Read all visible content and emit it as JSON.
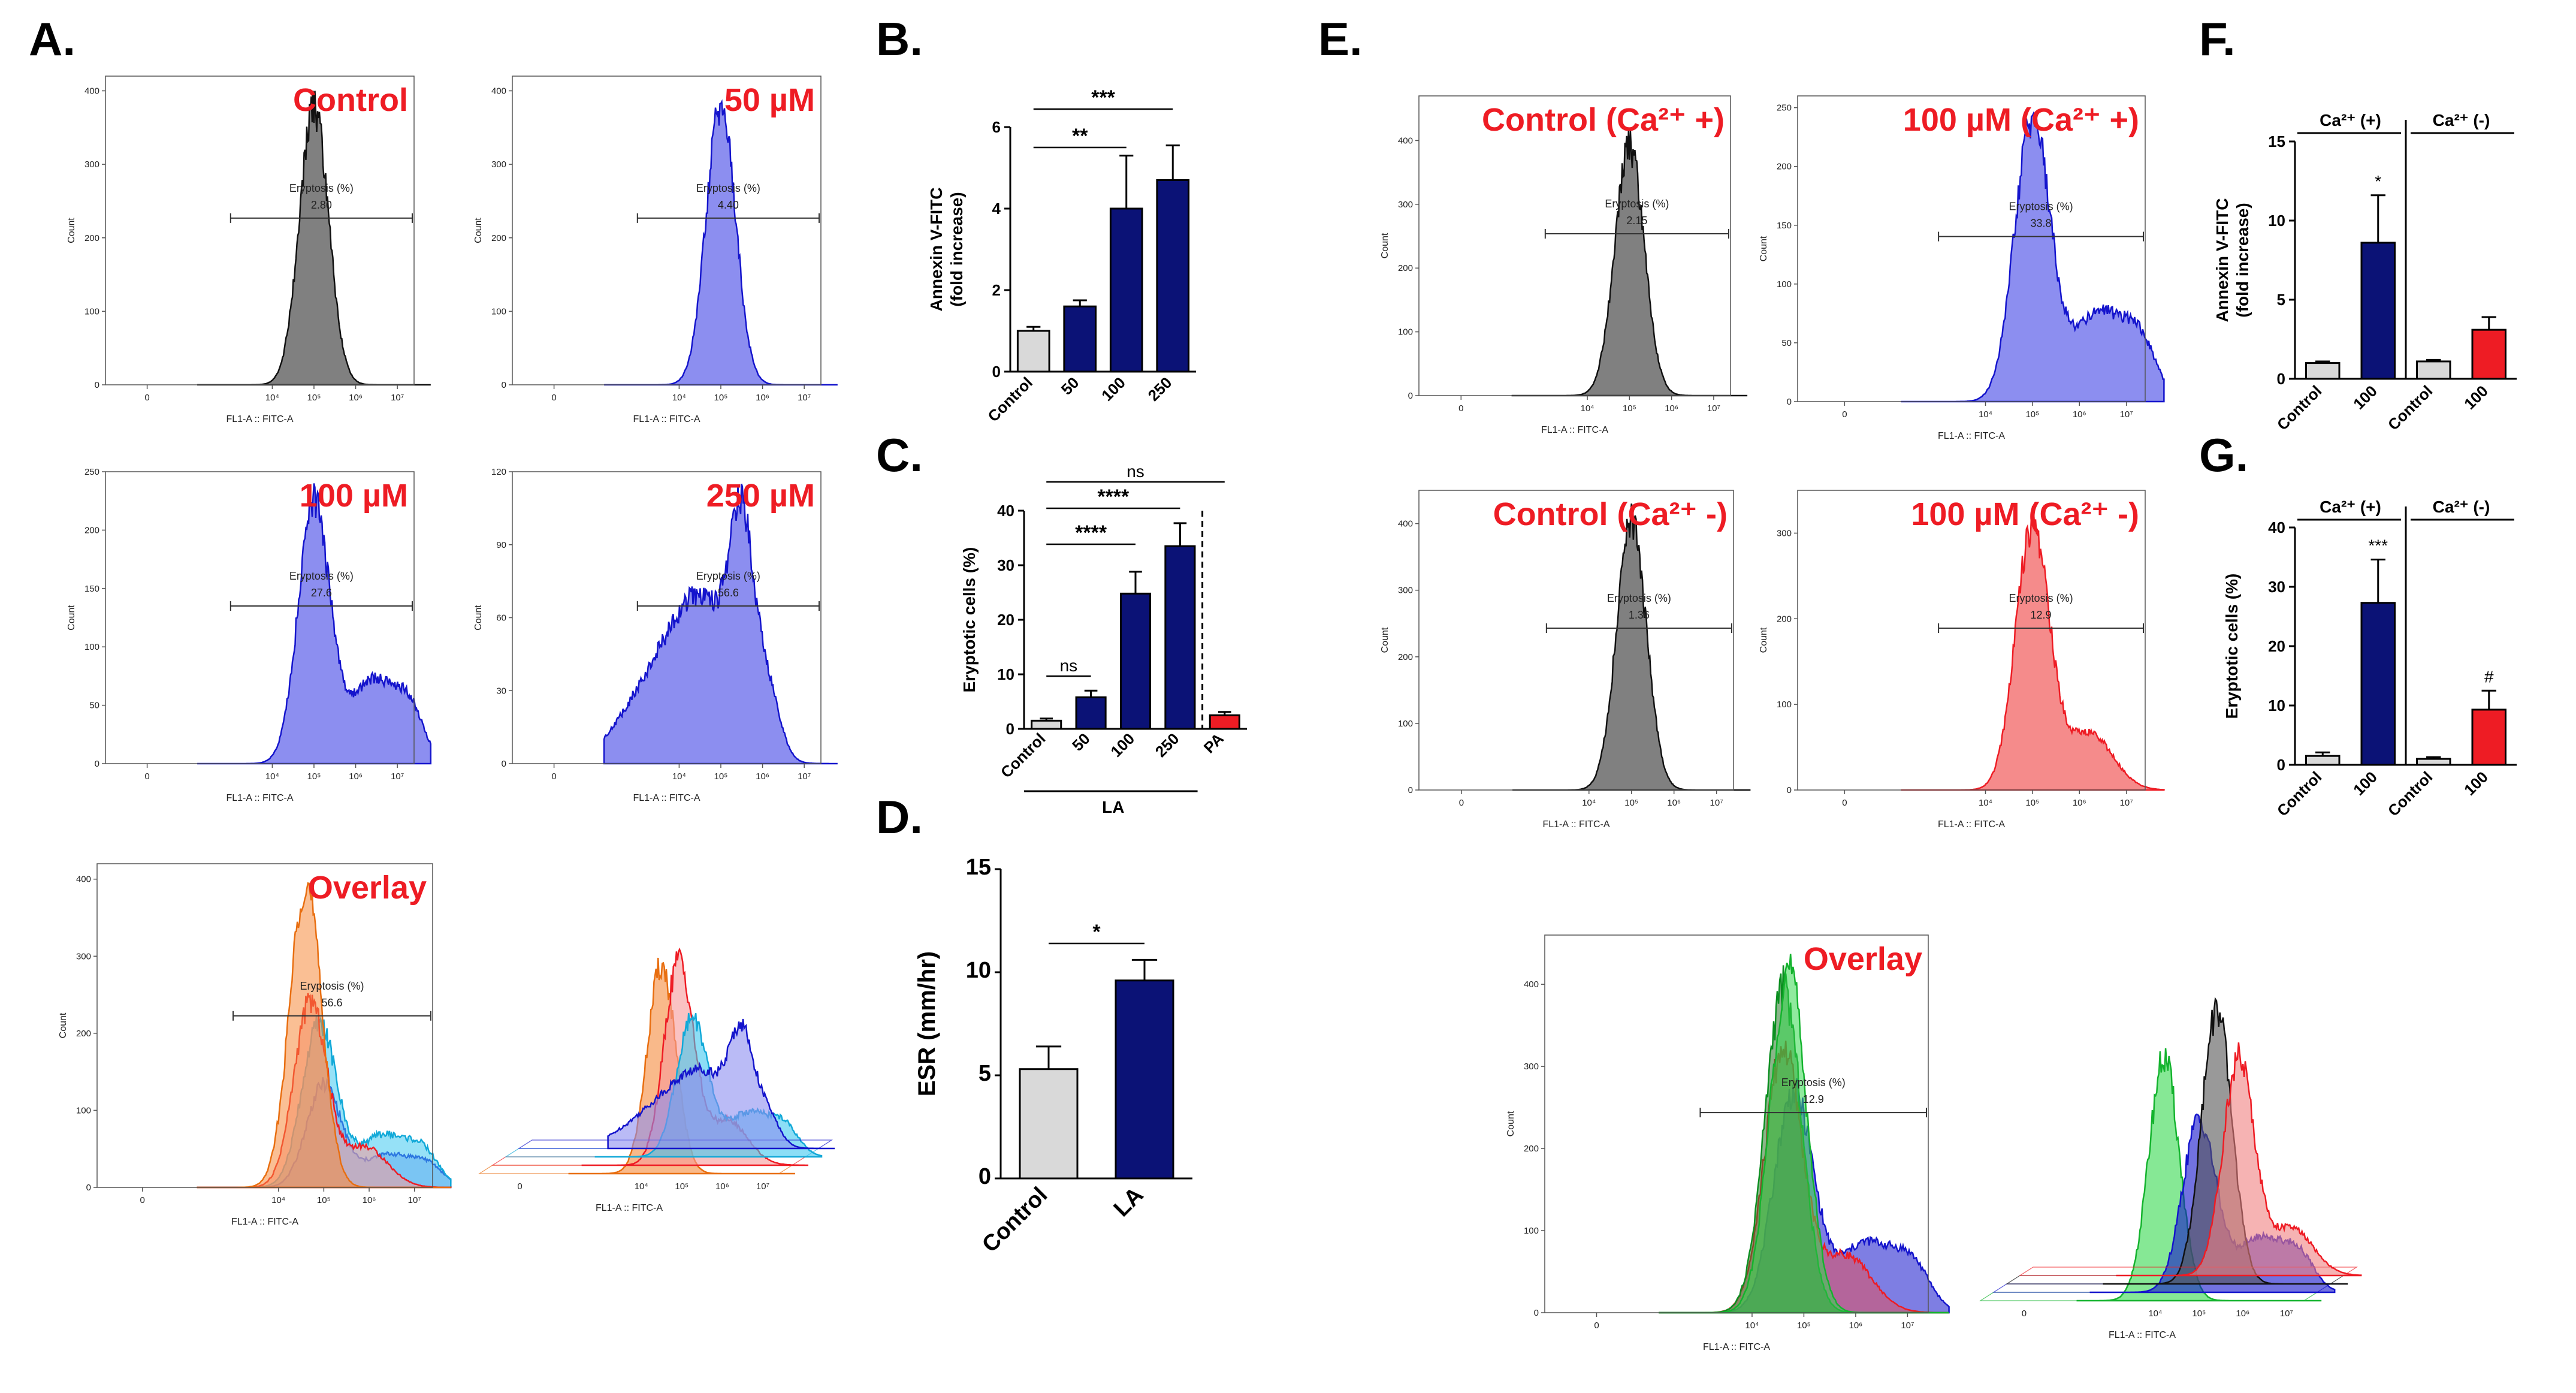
{
  "figure": {
    "panel_labels": [
      "A.",
      "B.",
      "C.",
      "D.",
      "E.",
      "F.",
      "G."
    ],
    "flow_axis": {
      "xlabel": "FL1-A :: FITC-A",
      "ylabel": "Count",
      "gate_label": "Eryptosis (%)",
      "xticks": [
        "0",
        "10⁴",
        "10⁵",
        "10⁶",
        "10⁷"
      ]
    },
    "colors": {
      "control": "#808080",
      "treated": "#8c8ef0",
      "treated_line": "#1414cc",
      "red": "#ee1c24",
      "navy": "#0b1276",
      "light": "#d9d9d9",
      "orange": "#f58a3c",
      "cyan": "#3fc8f0",
      "green": "#35d94f"
    }
  },
  "chart_data": [
    {
      "id": "A1",
      "type": "histogram",
      "title": "Control",
      "fill": "gray",
      "gate_value": "2.80",
      "yticks": [
        "0",
        "100",
        "200",
        "300",
        "400"
      ],
      "ylim": [
        0,
        420
      ],
      "peak_log": 5.0,
      "peak_count": 400
    },
    {
      "id": "A2",
      "type": "histogram",
      "title": "50 µM",
      "fill": "blue",
      "gate_value": "4.40",
      "yticks": [
        "0",
        "100",
        "200",
        "300",
        "400"
      ],
      "ylim": [
        0,
        420
      ],
      "peak_log": 5.0,
      "peak_count": 385
    },
    {
      "id": "A3",
      "type": "histogram",
      "title": "100 µM",
      "fill": "blue",
      "gate_value": "27.6",
      "yticks": [
        "0",
        "50",
        "100",
        "150",
        "200",
        "250"
      ],
      "ylim": [
        0,
        250
      ],
      "peak_log": 5.0,
      "peak_count": 240
    },
    {
      "id": "A4",
      "type": "histogram",
      "title": "250 µM",
      "fill": "blue",
      "gate_value": "56.6",
      "yticks": [
        "0",
        "30",
        "60",
        "90",
        "120"
      ],
      "ylim": [
        0,
        120
      ],
      "peak_log": 5.4,
      "peak_count": 115
    },
    {
      "id": "A5",
      "type": "histogram-overlay",
      "title": "Overlay",
      "gate_value": "56.6",
      "yticks": [
        "0",
        "100",
        "200",
        "300",
        "400"
      ],
      "ylim": [
        0,
        420
      ]
    },
    {
      "id": "A6",
      "type": "histogram-offset"
    },
    {
      "id": "B",
      "type": "bar",
      "categories": [
        "Control",
        "50",
        "100",
        "250"
      ],
      "values": [
        1.0,
        1.6,
        4.0,
        4.7
      ],
      "errors": [
        0.1,
        0.15,
        1.3,
        0.85
      ],
      "ylabel": "Annexin V-FITC (fold increase)",
      "ylim": [
        0,
        6
      ],
      "yticks": [
        "0",
        "2",
        "4",
        "6"
      ],
      "significance": [
        {
          "from": 0,
          "to": 3,
          "label": "***"
        },
        {
          "from": 0,
          "to": 2,
          "label": "**"
        }
      ]
    },
    {
      "id": "C",
      "type": "bar",
      "categories": [
        "Control",
        "50",
        "100",
        "250",
        "PA"
      ],
      "values": [
        1.5,
        5.8,
        24.8,
        33.5,
        2.5
      ],
      "errors": [
        0.4,
        1.2,
        4.0,
        4.2,
        0.6
      ],
      "ylabel": "Eryptotic cells (%)",
      "ylim": [
        0,
        40
      ],
      "yticks": [
        "0",
        "10",
        "20",
        "30",
        "40"
      ],
      "group_label": "LA",
      "significance": [
        {
          "from": 0,
          "to": 4,
          "label": "ns"
        },
        {
          "from": 0,
          "to": 3,
          "label": "****"
        },
        {
          "from": 0,
          "to": 2,
          "label": "****"
        },
        {
          "from": 0,
          "to": 1,
          "label": "ns"
        }
      ]
    },
    {
      "id": "D",
      "type": "bar",
      "categories": [
        "Control",
        "LA"
      ],
      "values": [
        5.3,
        9.6
      ],
      "errors": [
        1.1,
        1.0
      ],
      "ylabel": "ESR (mm/hr)",
      "ylim": [
        0,
        15
      ],
      "yticks": [
        "0",
        "5",
        "10",
        "15"
      ],
      "significance": [
        {
          "from": 0,
          "to": 1,
          "label": "*"
        }
      ]
    },
    {
      "id": "E1",
      "type": "histogram",
      "title": "Control (Ca²⁺ +)",
      "fill": "gray",
      "gate_value": "2.15",
      "yticks": [
        "0",
        "100",
        "200",
        "300",
        "400"
      ],
      "ylim": [
        0,
        470
      ],
      "peak_log": 5.0,
      "peak_count": 415
    },
    {
      "id": "E2",
      "type": "histogram",
      "title": "100 µM (Ca²⁺ +)",
      "fill": "blue",
      "gate_value": "33.8",
      "yticks": [
        "0",
        "50",
        "100",
        "150",
        "200",
        "250"
      ],
      "ylim": [
        0,
        260
      ],
      "peak_log": 5.0,
      "peak_count": 245
    },
    {
      "id": "E3",
      "type": "histogram",
      "title": "Control (Ca²⁺ -)",
      "fill": "gray",
      "gate_value": "1.36",
      "yticks": [
        "0",
        "100",
        "200",
        "300",
        "400"
      ],
      "ylim": [
        0,
        450
      ],
      "peak_log": 5.0,
      "peak_count": 430
    },
    {
      "id": "E4",
      "type": "histogram",
      "title": "100 µM (Ca²⁺ -)",
      "fill": "red",
      "gate_value": "12.9",
      "yticks": [
        "0",
        "100",
        "200",
        "300"
      ],
      "ylim": [
        0,
        350
      ],
      "peak_log": 5.0,
      "peak_count": 330
    },
    {
      "id": "E5",
      "type": "histogram-overlay",
      "title": "Overlay",
      "gate_value": "12.9",
      "yticks": [
        "0",
        "100",
        "200",
        "300",
        "400"
      ],
      "ylim": [
        0,
        460
      ]
    },
    {
      "id": "E6",
      "type": "histogram-offset"
    },
    {
      "id": "F",
      "type": "bar",
      "categories": [
        "Control",
        "100",
        "Control",
        "100"
      ],
      "values": [
        1.0,
        8.6,
        1.1,
        3.1
      ],
      "errors": [
        0.1,
        3.0,
        0.1,
        0.8
      ],
      "ylabel": "Annexin V-FITC (fold increase)",
      "ylim": [
        0,
        15
      ],
      "yticks": [
        "0",
        "5",
        "10",
        "15"
      ],
      "groups": [
        "Ca²⁺ (+)",
        "Ca²⁺ (-)"
      ],
      "annotations": [
        "",
        "*",
        "",
        ""
      ]
    },
    {
      "id": "G",
      "type": "bar",
      "categories": [
        "Control",
        "100",
        "Control",
        "100"
      ],
      "values": [
        1.5,
        27.3,
        1.0,
        9.3
      ],
      "errors": [
        0.6,
        7.3,
        0.3,
        3.2
      ],
      "ylabel": "Eryptotic cells (%)",
      "ylim": [
        0,
        40
      ],
      "yticks": [
        "0",
        "10",
        "20",
        "30",
        "40"
      ],
      "groups": [
        "Ca²⁺ (+)",
        "Ca²⁺ (-)"
      ],
      "annotations": [
        "",
        "***",
        "",
        "#"
      ]
    }
  ]
}
